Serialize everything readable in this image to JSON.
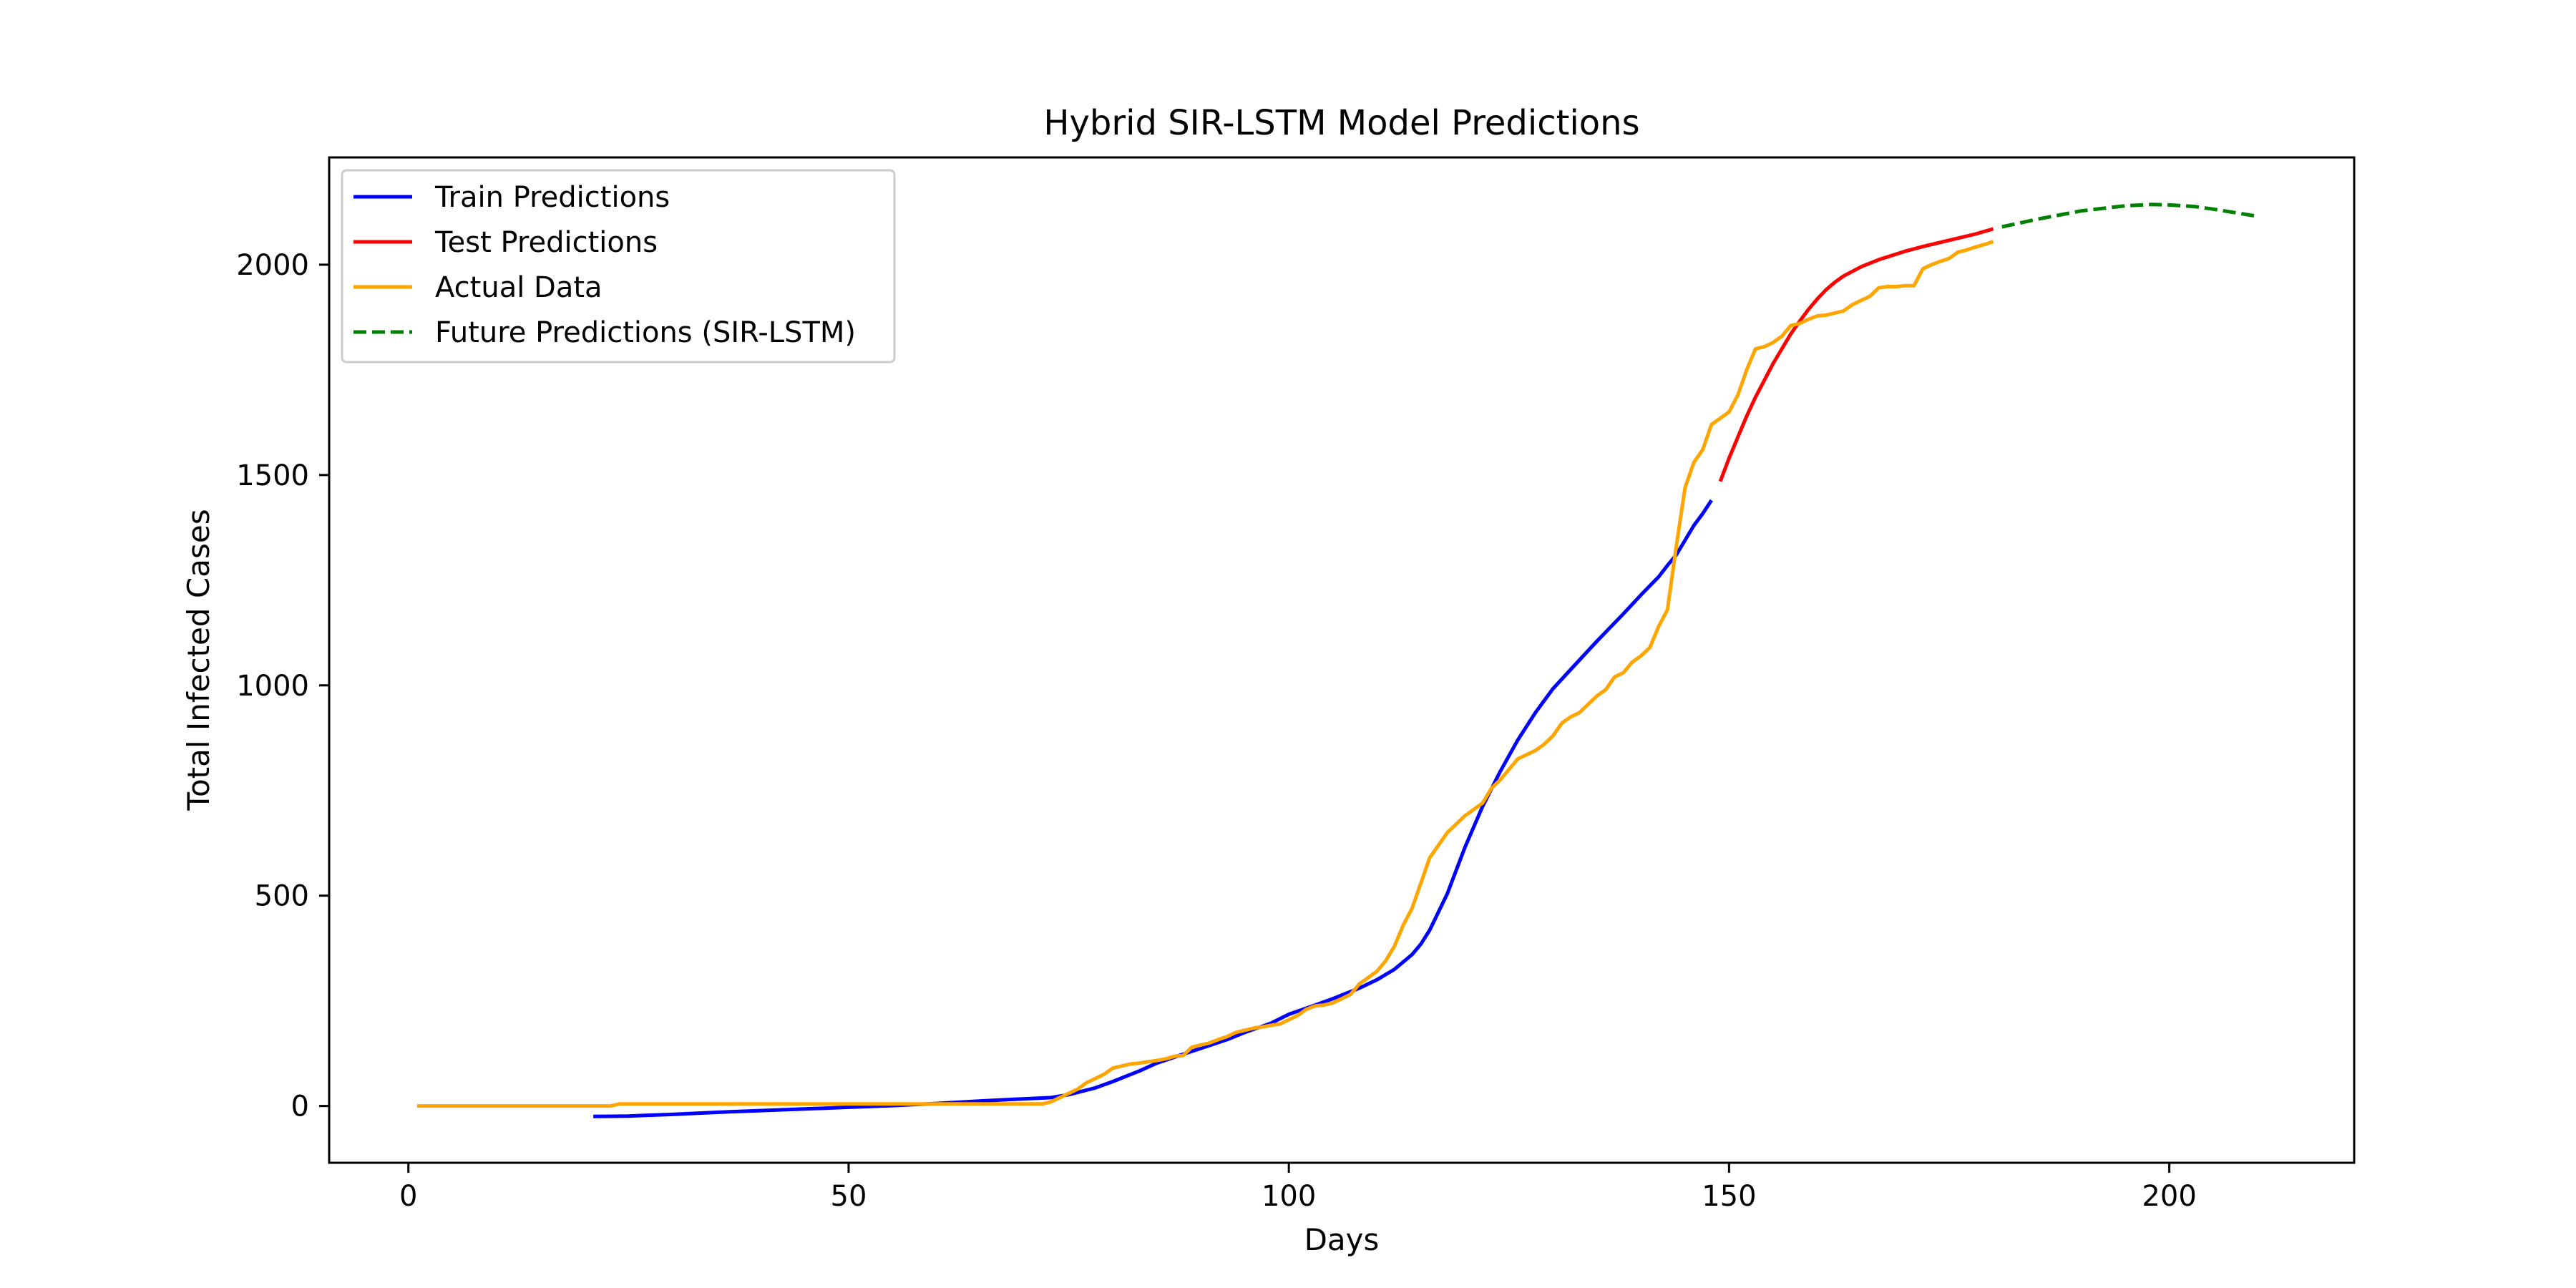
{
  "chart_data": {
    "type": "line",
    "title": "Hybrid SIR-LSTM Model Predictions",
    "xlabel": "Days",
    "ylabel": "Total Infected Cases",
    "xlim": [
      -9,
      221
    ],
    "ylim": [
      -135,
      2255
    ],
    "xticks": [
      0,
      50,
      100,
      150,
      200
    ],
    "yticks": [
      0,
      500,
      1000,
      1500,
      2000
    ],
    "xtick_labels": [
      "0",
      "50",
      "100",
      "150",
      "200"
    ],
    "ytick_labels": [
      "0",
      "500",
      "1000",
      "1500",
      "2000"
    ],
    "grid": false,
    "legend_position": "top-left",
    "series": [
      {
        "name": "Train Predictions",
        "color": "#0000ff",
        "dash": "solid",
        "x": [
          21,
          25,
          30,
          35,
          40,
          45,
          50,
          55,
          60,
          65,
          70,
          73,
          75,
          78,
          80,
          83,
          85,
          88,
          90,
          93,
          95,
          98,
          100,
          103,
          105,
          108,
          110,
          112,
          114,
          115,
          116,
          118,
          120,
          122,
          124,
          126,
          128,
          130,
          133,
          135,
          138,
          140,
          142,
          143,
          144,
          145,
          146,
          147,
          148
        ],
        "y": [
          -25,
          -24,
          -20,
          -15,
          -11,
          -7,
          -3,
          1,
          6,
          12,
          17,
          20,
          27,
          43,
          58,
          83,
          102,
          123,
          137,
          158,
          175,
          197,
          218,
          240,
          255,
          280,
          300,
          325,
          360,
          385,
          418,
          505,
          615,
          712,
          795,
          870,
          935,
          992,
          1060,
          1105,
          1170,
          1215,
          1258,
          1285,
          1310,
          1345,
          1380,
          1408,
          1440
        ]
      },
      {
        "name": "Test Predictions",
        "color": "#ff0000",
        "dash": "solid",
        "x": [
          149,
          150,
          151,
          152,
          153,
          154,
          155,
          156,
          157,
          158,
          159,
          160,
          161,
          162,
          163,
          165,
          167,
          170,
          172,
          175,
          178,
          180
        ],
        "y": [
          1485,
          1540,
          1590,
          1640,
          1685,
          1725,
          1765,
          1800,
          1835,
          1865,
          1893,
          1918,
          1940,
          1958,
          1973,
          1995,
          2012,
          2032,
          2043,
          2058,
          2073,
          2085
        ]
      },
      {
        "name": "Actual Data",
        "color": "#ffa500",
        "dash": "solid",
        "x": [
          1,
          23,
          24,
          30,
          40,
          50,
          60,
          65,
          70,
          72,
          73,
          74,
          75,
          76,
          77,
          78,
          79,
          80,
          81,
          82,
          83,
          84,
          85,
          86,
          87,
          88,
          89,
          90,
          91,
          92,
          93,
          94,
          95,
          96,
          97,
          98,
          99,
          100,
          101,
          102,
          103,
          104,
          105,
          106,
          107,
          108,
          109,
          110,
          111,
          112,
          113,
          114,
          115,
          116,
          117,
          118,
          119,
          120,
          121,
          122,
          123,
          124,
          125,
          126,
          127,
          128,
          129,
          130,
          131,
          132,
          133,
          134,
          135,
          136,
          137,
          138,
          139,
          140,
          141,
          142,
          143,
          144,
          145,
          146,
          147,
          148,
          149,
          150,
          151,
          152,
          153,
          154,
          155,
          156,
          157,
          158,
          159,
          160,
          161,
          162,
          163,
          164,
          165,
          166,
          167,
          168,
          169,
          170,
          171,
          172,
          173,
          174,
          175,
          176,
          177,
          178,
          179,
          180
        ],
        "y": [
          0,
          0,
          5,
          5,
          5,
          5,
          5,
          5,
          5,
          5,
          10,
          20,
          30,
          40,
          55,
          65,
          75,
          90,
          95,
          100,
          102,
          105,
          108,
          112,
          118,
          120,
          140,
          145,
          150,
          158,
          165,
          175,
          180,
          185,
          188,
          192,
          195,
          205,
          215,
          230,
          238,
          240,
          245,
          255,
          265,
          290,
          305,
          320,
          345,
          380,
          430,
          470,
          530,
          590,
          620,
          650,
          670,
          690,
          705,
          720,
          755,
          775,
          800,
          825,
          835,
          845,
          860,
          880,
          910,
          925,
          935,
          955,
          975,
          990,
          1020,
          1030,
          1055,
          1070,
          1090,
          1140,
          1180,
          1330,
          1470,
          1530,
          1560,
          1620,
          1635,
          1650,
          1690,
          1750,
          1800,
          1805,
          1815,
          1830,
          1855,
          1860,
          1870,
          1878,
          1880,
          1885,
          1890,
          1905,
          1915,
          1925,
          1945,
          1948,
          1948,
          1950,
          1950,
          1990,
          2000,
          2008,
          2015,
          2030,
          2035,
          2042,
          2048,
          2055
        ]
      },
      {
        "name": "Future Predictions (SIR-LSTM)",
        "color": "#008000",
        "dash": "dashed",
        "x": [
          181,
          185,
          190,
          195,
          198,
          200,
          203,
          205,
          208,
          210
        ],
        "y": [
          2090,
          2108,
          2128,
          2140,
          2143,
          2142,
          2138,
          2132,
          2122,
          2115
        ]
      }
    ]
  }
}
